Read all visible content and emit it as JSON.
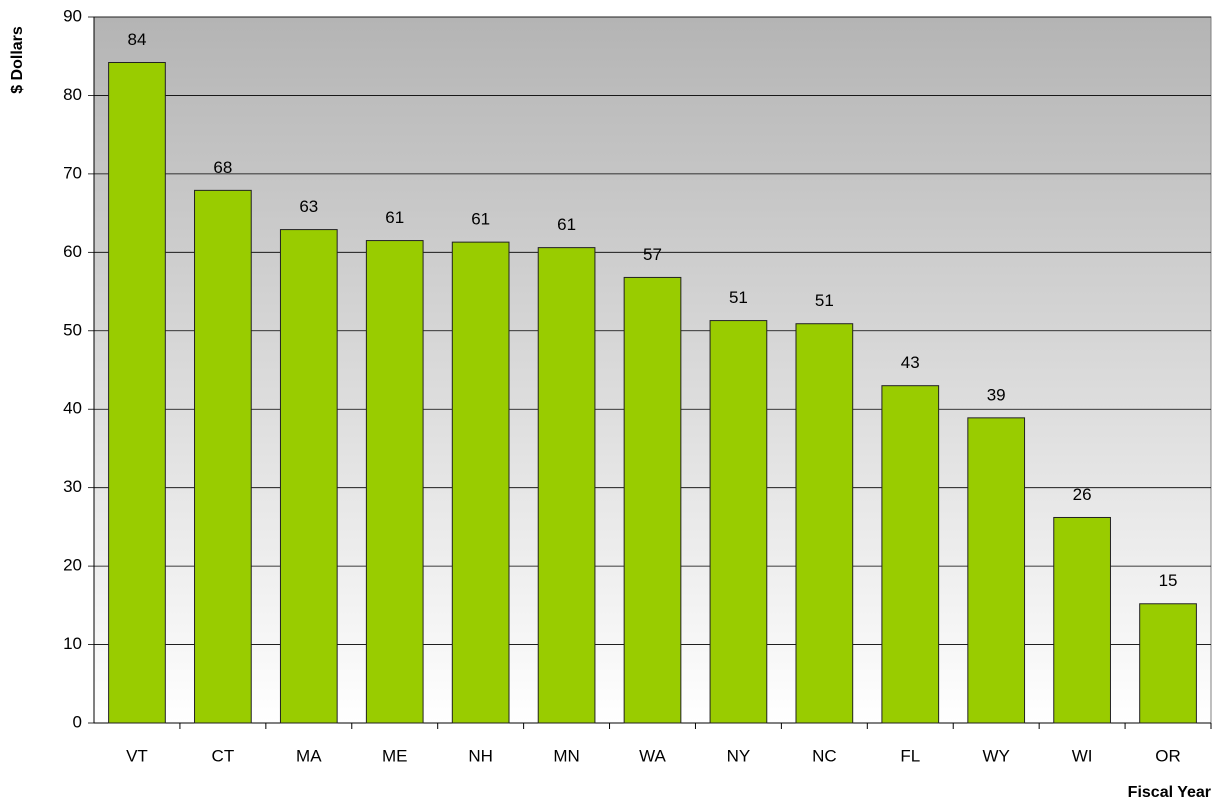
{
  "chart_data": {
    "type": "bar",
    "y_label": "$ Dollars",
    "x_label": "Fiscal Year",
    "categories": [
      "VT",
      "CT",
      "MA",
      "ME",
      "NH",
      "MN",
      "WA",
      "NY",
      "NC",
      "FL",
      "WY",
      "WI",
      "OR"
    ],
    "values": [
      84.2,
      67.9,
      62.9,
      61.5,
      61.3,
      60.6,
      56.8,
      51.3,
      50.9,
      43.0,
      38.9,
      26.2,
      15.2
    ],
    "value_labels": [
      "84",
      "68",
      "63",
      "61",
      "61",
      "61",
      "57",
      "51",
      "51",
      "43",
      "39",
      "26",
      "15"
    ],
    "color": "#99cc00",
    "ylim": [
      0,
      90
    ],
    "yticks": [
      0,
      10,
      20,
      30,
      40,
      50,
      60,
      70,
      80,
      90
    ],
    "grid": true
  }
}
